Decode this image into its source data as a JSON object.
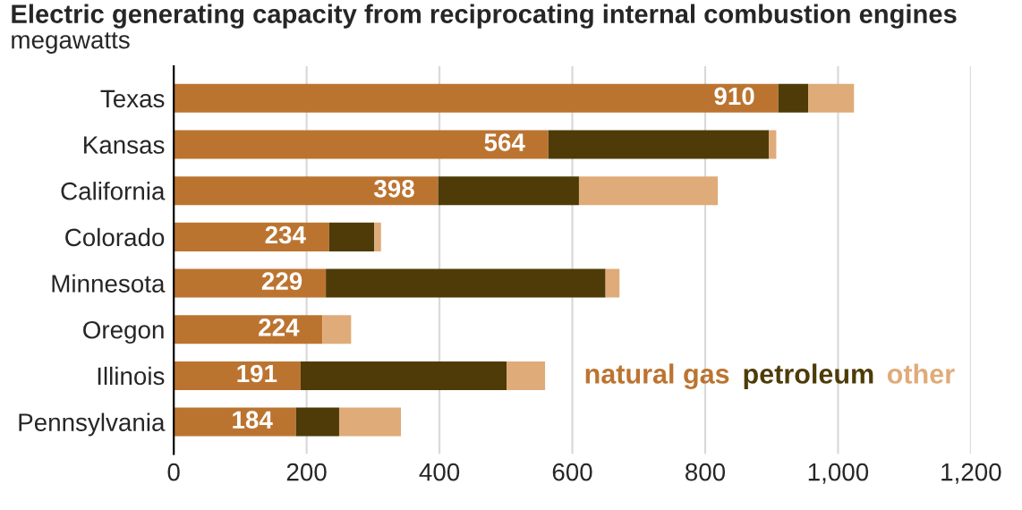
{
  "chart_data": {
    "type": "bar",
    "orientation": "horizontal",
    "stacked": true,
    "title": "Electric generating capacity from reciprocating internal combustion engines",
    "subtitle": "megawatts",
    "categories": [
      "Texas",
      "Kansas",
      "California",
      "Colorado",
      "Minnesota",
      "Oregon",
      "Illinois",
      "Pennsylvania"
    ],
    "series": [
      {
        "name": "natural gas",
        "color": "#bb7430",
        "values": [
          910,
          564,
          398,
          234,
          229,
          224,
          191,
          184
        ],
        "value_labels": [
          "910",
          "564",
          "398",
          "234",
          "229",
          "224",
          "191",
          "184"
        ]
      },
      {
        "name": "petroleum",
        "color": "#4e3b08",
        "values": [
          45,
          332,
          212,
          68,
          421,
          0,
          310,
          65
        ]
      },
      {
        "name": "other",
        "color": "#dfab78",
        "values": [
          69,
          11,
          209,
          10,
          21,
          43,
          58,
          93
        ]
      }
    ],
    "xlim": [
      0,
      1200
    ],
    "xticks": [
      0,
      200,
      400,
      600,
      800,
      {
        "value": 1000,
        "label": "1,000"
      },
      {
        "value": 1200,
        "label": "1,200"
      }
    ],
    "grid": "x",
    "legend": "bottom right"
  }
}
